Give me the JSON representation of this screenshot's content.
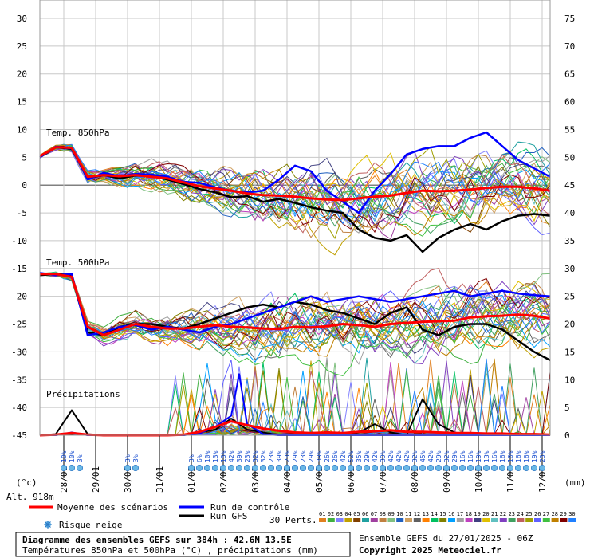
{
  "chart_data": {
    "type": "line",
    "left_axis": {
      "range": [
        -45,
        30
      ],
      "ticks": [
        30,
        25,
        20,
        15,
        10,
        5,
        0,
        -5,
        -10,
        -15,
        -20,
        -25,
        -30,
        -35,
        -40,
        -45
      ],
      "unit": "(°c)"
    },
    "right_axis": {
      "range": [
        0,
        75
      ],
      "ticks": [
        75,
        70,
        65,
        60,
        55,
        50,
        45,
        40,
        35,
        30,
        25,
        20,
        15,
        10,
        5,
        0
      ],
      "unit": "(mm)"
    },
    "x_dates": [
      "28/01",
      "29/01",
      "30/01",
      "31/01",
      "01/02",
      "02/02",
      "03/02",
      "04/02",
      "05/02",
      "06/02",
      "07/02",
      "08/02",
      "09/02",
      "10/02",
      "11/02",
      "12/02"
    ],
    "hours_total": 384,
    "section_labels": {
      "t850": "Temp. 850hPa",
      "t500": "Temp. 500hPa",
      "precip": "Précipitations"
    },
    "altitude": "Alt. 918m",
    "mean_850": [
      [
        0,
        5.2
      ],
      [
        12,
        6.8
      ],
      [
        24,
        6.7
      ],
      [
        36,
        1.5
      ],
      [
        48,
        1.8
      ],
      [
        60,
        1.6
      ],
      [
        72,
        1.8
      ],
      [
        84,
        1.5
      ],
      [
        96,
        1.2
      ],
      [
        108,
        0.5
      ],
      [
        120,
        -0.2
      ],
      [
        132,
        -0.6
      ],
      [
        144,
        -1.0
      ],
      [
        156,
        -1.5
      ],
      [
        168,
        -1.8
      ],
      [
        180,
        -1.9
      ],
      [
        192,
        -2.1
      ],
      [
        204,
        -2.4
      ],
      [
        216,
        -2.6
      ],
      [
        228,
        -2.7
      ],
      [
        240,
        -2.4
      ],
      [
        252,
        -2.1
      ],
      [
        264,
        -1.9
      ],
      [
        276,
        -1.4
      ],
      [
        288,
        -1.0
      ],
      [
        300,
        -1.1
      ],
      [
        312,
        -1.0
      ],
      [
        324,
        -0.8
      ],
      [
        336,
        -0.5
      ],
      [
        348,
        -0.3
      ],
      [
        360,
        -0.3
      ],
      [
        372,
        -0.6
      ],
      [
        384,
        -1.0
      ]
    ],
    "control_850": [
      [
        0,
        5.0
      ],
      [
        12,
        6.9
      ],
      [
        24,
        6.6
      ],
      [
        36,
        1.0
      ],
      [
        48,
        2.2
      ],
      [
        60,
        1.6
      ],
      [
        72,
        2.0
      ],
      [
        84,
        1.9
      ],
      [
        96,
        1.5
      ],
      [
        108,
        0.6
      ],
      [
        120,
        0.4
      ],
      [
        132,
        -0.4
      ],
      [
        144,
        -1.0
      ],
      [
        156,
        -1.3
      ],
      [
        168,
        -1.0
      ],
      [
        180,
        1.0
      ],
      [
        192,
        3.5
      ],
      [
        204,
        2.5
      ],
      [
        216,
        -1.0
      ],
      [
        228,
        -3.0
      ],
      [
        240,
        -5.0
      ],
      [
        252,
        -1.0
      ],
      [
        264,
        2.0
      ],
      [
        276,
        5.5
      ],
      [
        288,
        6.5
      ],
      [
        300,
        7.0
      ],
      [
        312,
        7.0
      ],
      [
        324,
        8.5
      ],
      [
        336,
        9.5
      ],
      [
        348,
        7.0
      ],
      [
        360,
        4.5
      ],
      [
        372,
        3.0
      ],
      [
        384,
        1.5
      ]
    ],
    "gfs_850": [
      [
        0,
        5.0
      ],
      [
        12,
        6.8
      ],
      [
        24,
        6.5
      ],
      [
        36,
        1.2
      ],
      [
        48,
        1.8
      ],
      [
        60,
        1.2
      ],
      [
        72,
        1.7
      ],
      [
        84,
        1.6
      ],
      [
        96,
        1.0
      ],
      [
        108,
        0.2
      ],
      [
        120,
        -0.7
      ],
      [
        132,
        -1.3
      ],
      [
        144,
        -2.2
      ],
      [
        156,
        -2.0
      ],
      [
        168,
        -3.0
      ],
      [
        180,
        -2.5
      ],
      [
        192,
        -3.2
      ],
      [
        204,
        -4.0
      ],
      [
        216,
        -4.6
      ],
      [
        228,
        -5.0
      ],
      [
        240,
        -8.0
      ],
      [
        252,
        -9.5
      ],
      [
        264,
        -10.0
      ],
      [
        276,
        -9.0
      ],
      [
        288,
        -12.0
      ],
      [
        300,
        -9.5
      ],
      [
        312,
        -8.0
      ],
      [
        324,
        -7.0
      ],
      [
        336,
        -8.0
      ],
      [
        348,
        -6.5
      ],
      [
        360,
        -5.5
      ],
      [
        372,
        -5.2
      ],
      [
        384,
        -5.5
      ]
    ],
    "mean_500": [
      [
        0,
        -16.0
      ],
      [
        12,
        -16.0
      ],
      [
        24,
        -16.5
      ],
      [
        36,
        -25.5
      ],
      [
        48,
        -27.0
      ],
      [
        60,
        -26.0
      ],
      [
        72,
        -25.0
      ],
      [
        84,
        -25.5
      ],
      [
        96,
        -25.8
      ],
      [
        108,
        -25.8
      ],
      [
        120,
        -25.5
      ],
      [
        132,
        -25.2
      ],
      [
        144,
        -25.5
      ],
      [
        156,
        -25.6
      ],
      [
        168,
        -25.8
      ],
      [
        180,
        -25.9
      ],
      [
        192,
        -25.5
      ],
      [
        204,
        -25.6
      ],
      [
        216,
        -25.4
      ],
      [
        228,
        -25.0
      ],
      [
        240,
        -25.2
      ],
      [
        252,
        -25.5
      ],
      [
        264,
        -25.0
      ],
      [
        276,
        -24.8
      ],
      [
        288,
        -24.6
      ],
      [
        300,
        -24.5
      ],
      [
        312,
        -24.4
      ],
      [
        324,
        -23.8
      ],
      [
        336,
        -23.6
      ],
      [
        348,
        -23.5
      ],
      [
        360,
        -23.3
      ],
      [
        372,
        -23.5
      ],
      [
        384,
        -24.0
      ]
    ],
    "control_500": [
      [
        0,
        -15.8
      ],
      [
        12,
        -16.2
      ],
      [
        24,
        -16.0
      ],
      [
        36,
        -27.0
      ],
      [
        48,
        -26.5
      ],
      [
        60,
        -25.5
      ],
      [
        72,
        -25.2
      ],
      [
        84,
        -26.0
      ],
      [
        96,
        -25.5
      ],
      [
        108,
        -26.0
      ],
      [
        120,
        -26.5
      ],
      [
        132,
        -25.5
      ],
      [
        144,
        -25.0
      ],
      [
        156,
        -24.0
      ],
      [
        168,
        -23.0
      ],
      [
        180,
        -22.0
      ],
      [
        192,
        -21.0
      ],
      [
        204,
        -20.0
      ],
      [
        216,
        -21.0
      ],
      [
        228,
        -20.5
      ],
      [
        240,
        -20.0
      ],
      [
        252,
        -20.5
      ],
      [
        264,
        -21.0
      ],
      [
        276,
        -20.5
      ],
      [
        288,
        -20.0
      ],
      [
        300,
        -19.5
      ],
      [
        312,
        -19.0
      ],
      [
        324,
        -20.0
      ],
      [
        336,
        -19.5
      ],
      [
        348,
        -19.0
      ],
      [
        360,
        -19.5
      ],
      [
        372,
        -19.8
      ],
      [
        384,
        -20.0
      ]
    ],
    "gfs_500": [
      [
        0,
        -16.2
      ],
      [
        12,
        -16.0
      ],
      [
        24,
        -16.2
      ],
      [
        36,
        -26.5
      ],
      [
        48,
        -27.0
      ],
      [
        60,
        -25.5
      ],
      [
        72,
        -25.0
      ],
      [
        84,
        -25.0
      ],
      [
        96,
        -25.5
      ],
      [
        108,
        -25.8
      ],
      [
        120,
        -25.0
      ],
      [
        132,
        -24.0
      ],
      [
        144,
        -23.0
      ],
      [
        156,
        -22.0
      ],
      [
        168,
        -21.5
      ],
      [
        180,
        -22.0
      ],
      [
        192,
        -21.0
      ],
      [
        204,
        -21.5
      ],
      [
        216,
        -22.5
      ],
      [
        228,
        -23.0
      ],
      [
        240,
        -24.0
      ],
      [
        252,
        -25.0
      ],
      [
        264,
        -23.0
      ],
      [
        276,
        -22.0
      ],
      [
        288,
        -26.0
      ],
      [
        300,
        -27.0
      ],
      [
        312,
        -25.5
      ],
      [
        324,
        -25.0
      ],
      [
        336,
        -25.0
      ],
      [
        348,
        -26.0
      ],
      [
        360,
        -28.0
      ],
      [
        372,
        -30.0
      ],
      [
        384,
        -31.5
      ]
    ],
    "precip_mean": [
      [
        0,
        0.0
      ],
      [
        12,
        0.1
      ],
      [
        24,
        0.4
      ],
      [
        36,
        0.1
      ],
      [
        48,
        0.0
      ],
      [
        60,
        0.0
      ],
      [
        72,
        0.0
      ],
      [
        84,
        0.0
      ],
      [
        96,
        0.0
      ],
      [
        108,
        0.1
      ],
      [
        120,
        0.6
      ],
      [
        132,
        1.5
      ],
      [
        144,
        2.5
      ],
      [
        156,
        1.8
      ],
      [
        168,
        1.2
      ],
      [
        180,
        0.8
      ],
      [
        192,
        0.5
      ],
      [
        204,
        0.4
      ],
      [
        216,
        0.5
      ],
      [
        228,
        0.4
      ],
      [
        240,
        0.6
      ],
      [
        252,
        0.7
      ],
      [
        264,
        0.9
      ],
      [
        276,
        0.6
      ],
      [
        288,
        0.6
      ],
      [
        300,
        0.5
      ],
      [
        312,
        0.4
      ],
      [
        324,
        0.4
      ],
      [
        336,
        0.3
      ],
      [
        348,
        0.3
      ],
      [
        360,
        0.2
      ],
      [
        372,
        0.2
      ],
      [
        384,
        0.1
      ]
    ],
    "precip_gfs": [
      [
        0,
        0.0
      ],
      [
        12,
        0.2
      ],
      [
        24,
        4.5
      ],
      [
        36,
        0.2
      ],
      [
        48,
        0.0
      ],
      [
        60,
        0.0
      ],
      [
        72,
        0.0
      ],
      [
        84,
        0.0
      ],
      [
        96,
        0.0
      ],
      [
        108,
        0.0
      ],
      [
        120,
        0.5
      ],
      [
        132,
        1.0
      ],
      [
        144,
        3.0
      ],
      [
        156,
        1.0
      ],
      [
        168,
        0.5
      ],
      [
        180,
        0.0
      ],
      [
        192,
        0.0
      ],
      [
        204,
        0.0
      ],
      [
        216,
        0.0
      ],
      [
        228,
        0.0
      ],
      [
        240,
        0.5
      ],
      [
        252,
        2.0
      ],
      [
        264,
        0.5
      ],
      [
        276,
        0.0
      ],
      [
        288,
        6.5
      ],
      [
        300,
        2.0
      ],
      [
        312,
        0.5
      ],
      [
        324,
        0.0
      ],
      [
        336,
        0.0
      ],
      [
        348,
        0.0
      ],
      [
        360,
        0.0
      ],
      [
        372,
        0.0
      ],
      [
        384,
        0.0
      ]
    ],
    "precip_control": [
      [
        0,
        0.0
      ],
      [
        12,
        0.0
      ],
      [
        24,
        0.5
      ],
      [
        36,
        0.0
      ],
      [
        48,
        0.0
      ],
      [
        60,
        0.0
      ],
      [
        72,
        0.0
      ],
      [
        84,
        0.0
      ],
      [
        96,
        0.0
      ],
      [
        108,
        0.0
      ],
      [
        120,
        0.3
      ],
      [
        132,
        1.5
      ],
      [
        144,
        3.5
      ],
      [
        150,
        11.0
      ],
      [
        156,
        2.0
      ],
      [
        168,
        0.2
      ],
      [
        180,
        0.0
      ],
      [
        192,
        0.0
      ],
      [
        204,
        0.0
      ],
      [
        216,
        0.0
      ],
      [
        228,
        0.0
      ],
      [
        240,
        0.0
      ],
      [
        252,
        0.0
      ],
      [
        264,
        0.0
      ],
      [
        276,
        0.0
      ],
      [
        288,
        0.0
      ],
      [
        300,
        0.0
      ],
      [
        312,
        0.0
      ],
      [
        324,
        0.0
      ],
      [
        336,
        0.0
      ],
      [
        348,
        0.0
      ],
      [
        360,
        0.0
      ],
      [
        372,
        0.0
      ],
      [
        384,
        0.0
      ]
    ],
    "snow_risk": [
      {
        "hour": 18,
        "pct": "10%"
      },
      {
        "hour": 24,
        "pct": "10%"
      },
      {
        "hour": 30,
        "pct": "3%"
      },
      {
        "hour": 66,
        "pct": "3%"
      },
      {
        "hour": 72,
        "pct": "3%"
      },
      {
        "hour": 114,
        "pct": "3%"
      },
      {
        "hour": 120,
        "pct": "6%"
      },
      {
        "hour": 126,
        "pct": "10%"
      },
      {
        "hour": 132,
        "pct": "13%"
      },
      {
        "hour": 138,
        "pct": "13%"
      },
      {
        "hour": 144,
        "pct": "42%"
      },
      {
        "hour": 150,
        "pct": "39%"
      },
      {
        "hour": 156,
        "pct": "23%"
      },
      {
        "hour": 162,
        "pct": "32%"
      },
      {
        "hour": 168,
        "pct": "32%"
      },
      {
        "hour": 174,
        "pct": "23%"
      },
      {
        "hour": 180,
        "pct": "39%"
      },
      {
        "hour": 186,
        "pct": "23%"
      },
      {
        "hour": 192,
        "pct": "29%"
      },
      {
        "hour": 198,
        "pct": "23%"
      },
      {
        "hour": 204,
        "pct": "29%"
      },
      {
        "hour": 210,
        "pct": "39%"
      },
      {
        "hour": 216,
        "pct": "26%"
      },
      {
        "hour": 222,
        "pct": "26%"
      },
      {
        "hour": 228,
        "pct": "42%"
      },
      {
        "hour": 234,
        "pct": "52%"
      },
      {
        "hour": 240,
        "pct": "35%"
      },
      {
        "hour": 246,
        "pct": "29%"
      },
      {
        "hour": 252,
        "pct": "42%"
      },
      {
        "hour": 258,
        "pct": "39%"
      },
      {
        "hour": 264,
        "pct": "42%"
      },
      {
        "hour": 270,
        "pct": "42%"
      },
      {
        "hour": 276,
        "pct": "42%"
      },
      {
        "hour": 282,
        "pct": "32%"
      },
      {
        "hour": 288,
        "pct": "45%"
      },
      {
        "hour": 294,
        "pct": "42%"
      },
      {
        "hour": 300,
        "pct": "29%"
      },
      {
        "hour": 306,
        "pct": "32%"
      },
      {
        "hour": 312,
        "pct": "29%"
      },
      {
        "hour": 318,
        "pct": "16%"
      },
      {
        "hour": 324,
        "pct": "16%"
      },
      {
        "hour": 330,
        "pct": "19%"
      },
      {
        "hour": 336,
        "pct": "13%"
      },
      {
        "hour": 342,
        "pct": "16%"
      },
      {
        "hour": 348,
        "pct": "16%"
      },
      {
        "hour": 354,
        "pct": "16%"
      },
      {
        "hour": 360,
        "pct": "16%"
      },
      {
        "hour": 366,
        "pct": "16%"
      },
      {
        "hour": 372,
        "pct": "19%"
      },
      {
        "hour": 378,
        "pct": "23%"
      }
    ]
  },
  "legend": {
    "mean_label": "Moyenne des scénarios",
    "control_label": "Run de contrôle",
    "gfs_label": "Run GFS",
    "snow_label": "Risque neige",
    "perts_label": "30 Perts.",
    "perts": [
      "01",
      "02",
      "03",
      "04",
      "05",
      "06",
      "07",
      "08",
      "09",
      "10",
      "11",
      "12",
      "13",
      "14",
      "15",
      "16",
      "17",
      "18",
      "19",
      "20",
      "21",
      "22",
      "23",
      "24",
      "25",
      "26",
      "27",
      "28",
      "29",
      "30"
    ],
    "pert_colors": [
      "#e08020",
      "#40b040",
      "#8080ff",
      "#c0a000",
      "#804000",
      "#20a0a0",
      "#a040a0",
      "#c08040",
      "#80c080",
      "#2060c0",
      "#d0a060",
      "#606060",
      "#ff8000",
      "#00c060",
      "#808000",
      "#00a0ff",
      "#a0a0a0",
      "#c040c0",
      "#404080",
      "#e0c000",
      "#60c0c0",
      "#8040c0",
      "#40a060",
      "#c06060",
      "#a0a000",
      "#6060ff",
      "#40c040",
      "#c08000",
      "#800000",
      "#2080ff"
    ],
    "mean_color": "#ff0000",
    "control_color": "#0000ff",
    "gfs_color": "#000000"
  },
  "footer": {
    "title": "Diagramme des ensembles GEFS sur 384h : 42.6N 13.5E",
    "subtitle": "Températures 850hPa et 500hPa (°C) , précipitations (mm)",
    "run_info": "Ensemble GEFS du 27/01/2025 - 06Z",
    "copyright": "Copyright 2025 Meteociel.fr"
  }
}
